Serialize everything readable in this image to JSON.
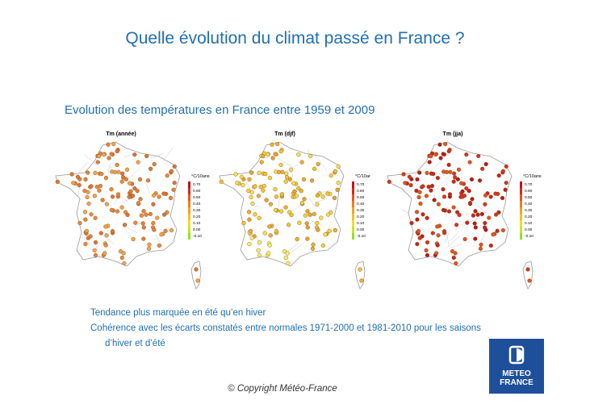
{
  "title": "Quelle évolution du climat passé en France ?",
  "subtitle": "Evolution des températures en France entre 1959 et 2009",
  "maps": [
    {
      "title": "Tm (année)",
      "unit": "°C/10ans",
      "palette": "orange"
    },
    {
      "title": "Tm (djf)",
      "unit": "°C/10ar",
      "palette": "yellow"
    },
    {
      "title": "Tm (jja)",
      "unit": "°C/10ans",
      "palette": "red"
    }
  ],
  "legend_ticks": [
    "0.70",
    "0.60",
    "0.50",
    "0.40",
    "0.30",
    "0.20",
    "0.10",
    "0.00",
    "-0.10"
  ],
  "legend_colors": [
    "#c4121a",
    "#d9281b",
    "#e8551f",
    "#ef7e22",
    "#f2a126",
    "#f5c12a",
    "#f0dc2e",
    "#c6e52e",
    "#93e02c"
  ],
  "bullets": [
    "Tendance plus marquée en été qu’en hiver",
    "Cohérence avec les écarts constatés entre normales 1971-2000 et 1981-2010 pour les saisons",
    "d’hiver et d’été"
  ],
  "copyright": "© Copyright Météo-France",
  "logo": {
    "line1": "METEO",
    "line2": "FRANCE",
    "color": "#1e4f9a"
  }
}
